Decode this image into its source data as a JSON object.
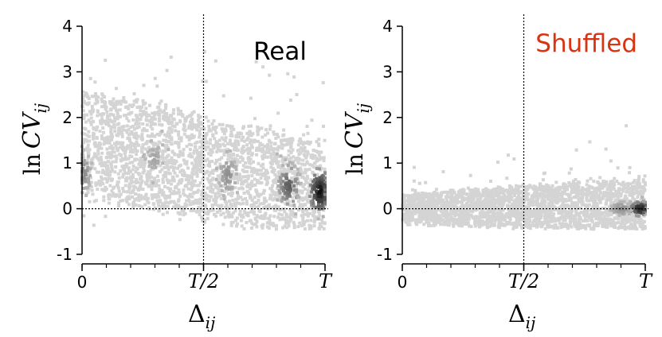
{
  "chart_data": [
    {
      "type": "heatmap",
      "title": "Real",
      "title_color": "#000000",
      "xlabel": {
        "base": "Δ",
        "sub": "ij"
      },
      "ylabel": {
        "fn": "ln",
        "base": "CV",
        "sub": "ij"
      },
      "x_ticks": [
        {
          "value": 0,
          "label": "0"
        },
        {
          "value": 0.5,
          "label": "T/2"
        },
        {
          "value": 1,
          "label": "T"
        }
      ],
      "y_ticks": [
        {
          "value": 4,
          "label": "4"
        },
        {
          "value": 3,
          "label": "3"
        },
        {
          "value": 2,
          "label": "2"
        },
        {
          "value": 1,
          "label": "1"
        },
        {
          "value": 0,
          "label": "0"
        },
        {
          "value": -1,
          "label": "-1"
        }
      ],
      "xlim": [
        0,
        1
      ],
      "ylim": [
        -1,
        4
      ],
      "reference_lines": {
        "vertical_x": 0.5,
        "horizontal_y": 0
      },
      "cloud": {
        "y_center_start": 1.45,
        "y_center_end": 0.35,
        "spread_start": 1.3,
        "spread_end": 1.2
      },
      "dense_regions": [
        {
          "x": 0.98,
          "y": 0.38,
          "weight": 1.0
        },
        {
          "x": 0.85,
          "y": 0.5,
          "weight": 0.6
        },
        {
          "x": 0.6,
          "y": 0.75,
          "weight": 0.35
        },
        {
          "x": 0.3,
          "y": 1.1,
          "weight": 0.25
        },
        {
          "x": 0.0,
          "y": 0.8,
          "weight": 0.4
        }
      ],
      "colors": {
        "light": "#d4d4d4",
        "dark": "#111111"
      }
    },
    {
      "type": "heatmap",
      "title": "Shuffled",
      "title_color": "#d93311",
      "xlabel": {
        "base": "Δ",
        "sub": "ij"
      },
      "ylabel": {
        "fn": "ln",
        "base": "CV",
        "sub": "ij"
      },
      "x_ticks": [
        {
          "value": 0,
          "label": "0"
        },
        {
          "value": 0.5,
          "label": "T/2"
        },
        {
          "value": 1,
          "label": "T"
        }
      ],
      "y_ticks": [
        {
          "value": 4,
          "label": "4"
        },
        {
          "value": 3,
          "label": "3"
        },
        {
          "value": 2,
          "label": "2"
        },
        {
          "value": 1,
          "label": "1"
        },
        {
          "value": 0,
          "label": "0"
        },
        {
          "value": -1,
          "label": "-1"
        }
      ],
      "xlim": [
        0,
        1
      ],
      "ylim": [
        -1,
        4
      ],
      "reference_lines": {
        "vertical_x": 0.5,
        "horizontal_y": 0
      },
      "cloud": {
        "y_center_start": 0.0,
        "y_center_end": 0.05,
        "spread_start": 0.35,
        "spread_end": 0.7
      },
      "dense_regions": [
        {
          "x": 0.98,
          "y": 0.0,
          "weight": 1.0
        },
        {
          "x": 0.9,
          "y": 0.0,
          "weight": 0.4
        }
      ],
      "colors": {
        "light": "#d4d4d4",
        "dark": "#111111"
      }
    }
  ]
}
